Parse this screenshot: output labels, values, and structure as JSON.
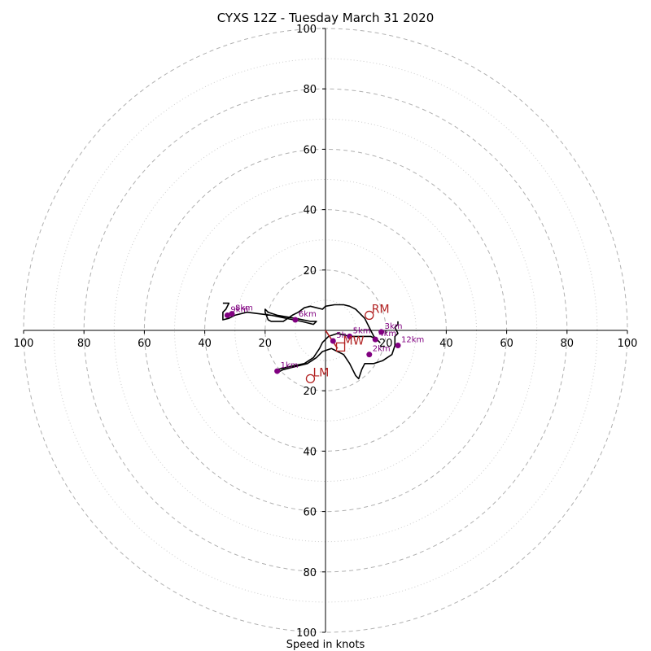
{
  "chart_data": {
    "type": "hodograph",
    "title": "CYXS 12Z - Tuesday March 31 2020",
    "xlabel": "Speed in knots",
    "range": [
      -100,
      100
    ],
    "ring_major": [
      20,
      40,
      60,
      80,
      100
    ],
    "ring_minor": [
      10,
      30,
      50,
      70,
      90
    ],
    "tick_values": [
      20,
      40,
      60,
      80,
      100
    ],
    "tick_labels": {
      "h": [
        "100",
        "80",
        "60",
        "40",
        "20",
        "20",
        "40",
        "60",
        "80",
        "100"
      ],
      "v_top": [
        "100",
        "80",
        "60",
        "40",
        "20"
      ],
      "v_bottom": [
        "20",
        "40",
        "60",
        "80",
        "100"
      ]
    },
    "grid": true,
    "colors": {
      "trace": "#000000",
      "height_points": "#800080",
      "motion": "#b22222",
      "grid": "#b0b0b0"
    },
    "trace": [
      [
        24,
        3
      ],
      [
        24,
        2
      ],
      [
        23,
        1
      ],
      [
        24,
        -1
      ],
      [
        23,
        -2
      ],
      [
        23,
        -5
      ],
      [
        22,
        -8
      ],
      [
        19,
        -10
      ],
      [
        16,
        -11
      ],
      [
        13,
        -11
      ],
      [
        12,
        -13
      ],
      [
        11,
        -16
      ],
      [
        10,
        -15
      ],
      [
        8,
        -11
      ],
      [
        6,
        -8
      ],
      [
        4,
        -7
      ],
      [
        2,
        -6
      ],
      [
        -1,
        -7
      ],
      [
        -3,
        -9
      ],
      [
        -6,
        -11
      ],
      [
        -10,
        -12
      ],
      [
        -14,
        -13
      ],
      [
        -16,
        -14
      ],
      [
        -16,
        -13
      ],
      [
        -12,
        -12
      ],
      [
        -7,
        -11
      ],
      [
        -4,
        -9
      ],
      [
        -2,
        -6
      ],
      [
        -1,
        -4
      ],
      [
        1,
        -2
      ],
      [
        4,
        -1
      ],
      [
        8,
        -2
      ],
      [
        12,
        -2
      ],
      [
        15,
        -2
      ],
      [
        17,
        -3
      ],
      [
        18,
        -4
      ],
      [
        16,
        -2
      ],
      [
        15,
        0
      ],
      [
        13,
        4
      ],
      [
        10,
        7
      ],
      [
        8,
        8
      ],
      [
        6,
        8.5
      ],
      [
        3,
        8.5
      ],
      [
        0,
        8
      ],
      [
        -1,
        7
      ],
      [
        -3,
        7.5
      ],
      [
        -5,
        8
      ],
      [
        -7,
        7.5
      ],
      [
        -9,
        6
      ],
      [
        -11,
        5
      ],
      [
        -14,
        3
      ],
      [
        -16,
        3
      ],
      [
        -18,
        3
      ],
      [
        -19,
        3.5
      ],
      [
        -20,
        6
      ],
      [
        -20,
        7
      ],
      [
        -19,
        6
      ],
      [
        -16,
        5
      ],
      [
        -10,
        4
      ],
      [
        -5,
        3
      ],
      [
        -3,
        3
      ],
      [
        -4,
        2
      ],
      [
        -8,
        3
      ],
      [
        -13,
        4
      ],
      [
        -18,
        5
      ],
      [
        -22,
        5.5
      ],
      [
        -26,
        6
      ],
      [
        -30,
        5
      ],
      [
        -32,
        4
      ],
      [
        -34,
        3.5
      ],
      [
        -34,
        6
      ],
      [
        -33,
        7
      ],
      [
        -32,
        9
      ],
      [
        -34,
        9
      ]
    ],
    "height_points": [
      {
        "label": "1km",
        "u": -16,
        "v": -13.5
      },
      {
        "label": "2km",
        "u": 14.5,
        "v": -8
      },
      {
        "label": "3km",
        "u": 18.5,
        "v": -0.5
      },
      {
        "label": "4km",
        "u": 16.5,
        "v": -3
      },
      {
        "label": "5km",
        "u": 8,
        "v": -2
      },
      {
        "label": "6km",
        "u": -10,
        "v": 3.5
      },
      {
        "label": "8km",
        "u": -31,
        "v": 5.5
      },
      {
        "label": "9km",
        "u": -32.5,
        "v": 5
      },
      {
        "label": "12km",
        "u": 24,
        "v": -5
      },
      {
        "label": "5h",
        "u": 2.5,
        "v": -3.5
      }
    ],
    "storm_motion": [
      {
        "label": "RM",
        "u": 14.5,
        "v": 5,
        "marker": "circle"
      },
      {
        "label": "LM",
        "u": -5,
        "v": -16,
        "marker": "circle"
      },
      {
        "label": "MW",
        "u": 5,
        "v": -5.5,
        "marker": "square"
      }
    ],
    "shear_arrow": {
      "from": [
        0,
        0
      ],
      "to": [
        4,
        -6
      ]
    }
  }
}
